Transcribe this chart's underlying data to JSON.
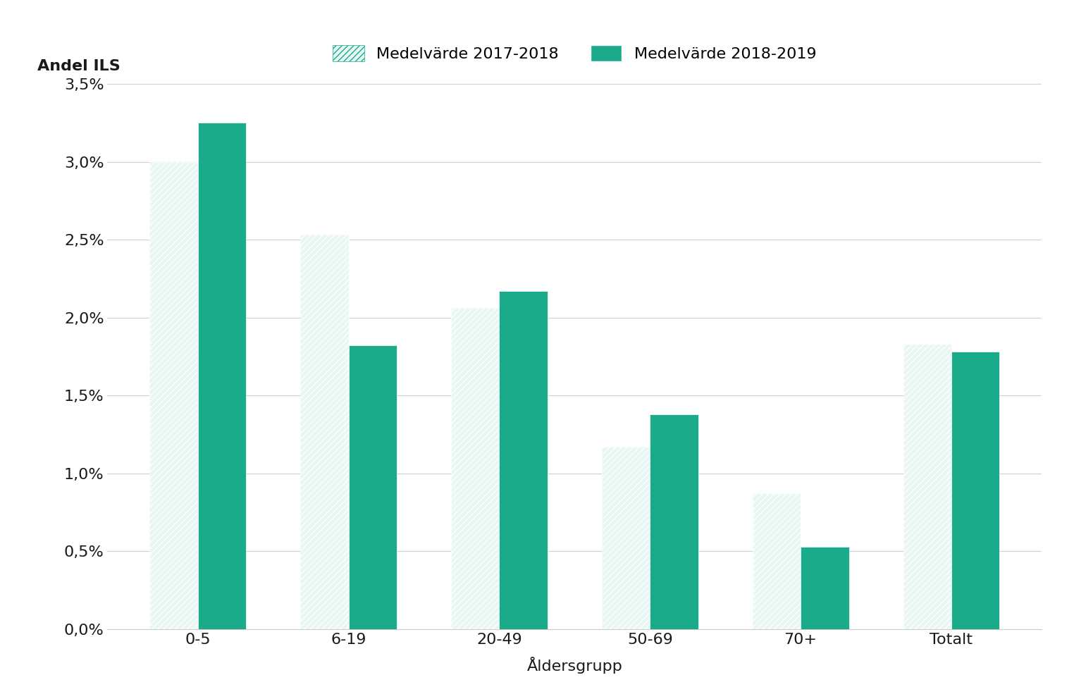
{
  "categories": [
    "0-5",
    "6-19",
    "20-49",
    "50-69",
    "70+",
    "Totalt"
  ],
  "values_2017_2018": [
    0.03,
    0.0253,
    0.0206,
    0.0117,
    0.0087,
    0.0183
  ],
  "values_2018_2019": [
    0.0325,
    0.0182,
    0.0217,
    0.0138,
    0.0053,
    0.0178
  ],
  "color_teal": "#1aab8a",
  "legend_label_1": "Medelvärde 2017-2018",
  "legend_label_2": "Medelvärde 2018-2019",
  "ylabel": "Andel ILS",
  "xlabel": "Åldersgrupp",
  "ylim": [
    0,
    0.035
  ],
  "yticks": [
    0.0,
    0.005,
    0.01,
    0.015,
    0.02,
    0.025,
    0.03,
    0.035
  ],
  "ytick_labels": [
    "0,0%",
    "0,5%",
    "1,0%",
    "1,5%",
    "2,0%",
    "2,5%",
    "3,0%",
    "3,5%"
  ],
  "background_color": "#ffffff",
  "bar_width": 0.32,
  "font_color": "#1a1a1a",
  "font_size": 16
}
